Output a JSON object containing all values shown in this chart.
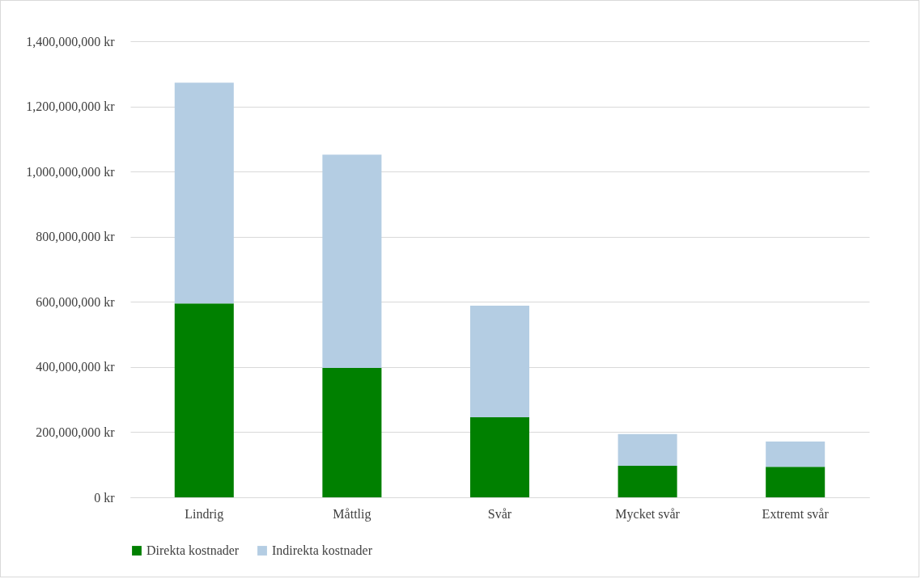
{
  "chart_data": {
    "type": "bar",
    "stacked": true,
    "categories": [
      "Lindrig",
      "Måttlig",
      "Svår",
      "Mycket svår",
      "Extremt svår"
    ],
    "series": [
      {
        "name": "Direkta kostnader",
        "color": "#008000",
        "values": [
          595000000,
          397000000,
          246000000,
          97000000,
          94000000
        ]
      },
      {
        "name": "Indirekta kostnader",
        "color": "#b4cde3",
        "values": [
          678000000,
          655000000,
          342000000,
          97000000,
          77000000
        ]
      }
    ],
    "ylim": [
      0,
      1400000000
    ],
    "yticks": [
      {
        "value": 0,
        "label": "0 kr"
      },
      {
        "value": 200000000,
        "label": "200,000,000 kr"
      },
      {
        "value": 400000000,
        "label": "400,000,000 kr"
      },
      {
        "value": 600000000,
        "label": "600,000,000 kr"
      },
      {
        "value": 800000000,
        "label": "800,000,000 kr"
      },
      {
        "value": 1000000000,
        "label": "1,000,000,000 kr"
      },
      {
        "value": 1200000000,
        "label": "1,200,000,000 kr"
      },
      {
        "value": 1400000000,
        "label": "1,400,000,000 kr"
      }
    ],
    "grid": "y",
    "legend": "bottom"
  }
}
